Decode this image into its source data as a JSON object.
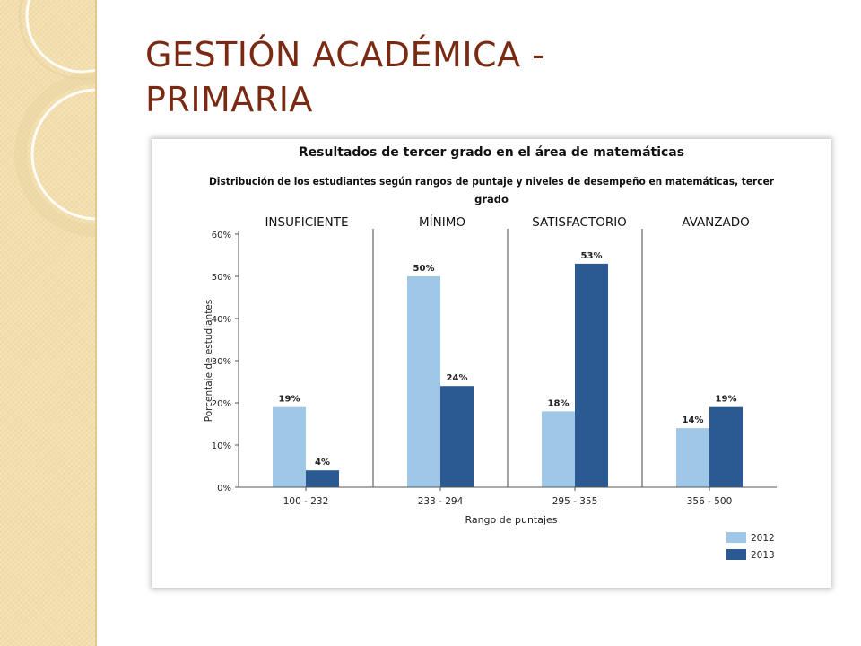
{
  "slide": {
    "title_line1": "GESTIÓN ACADÉMICA -",
    "title_line2": "PRIMARIA"
  },
  "chart_data": {
    "type": "bar",
    "title": "Resultados de tercer grado en el área de matemáticas",
    "subtitle_line1": "Distribución de los estudiantes según rangos de puntaje y niveles de desempeño en matemáticas, tercer",
    "subtitle_line2": "grado",
    "xlabel": "Rango de puntajes",
    "ylabel": "Porcentaje de estudiantes",
    "ylim": [
      0,
      60
    ],
    "yticks": [
      "0%",
      "10%",
      "20%",
      "30%",
      "40%",
      "50%",
      "60%"
    ],
    "levels": [
      "INSUFICIENTE",
      "MÍNIMO",
      "SATISFACTORIO",
      "AVANZADO"
    ],
    "categories": [
      "100 - 232",
      "233 - 294",
      "295 - 355",
      "356 - 500"
    ],
    "series": [
      {
        "name": "2012",
        "values": [
          19,
          50,
          18,
          14
        ],
        "labels": [
          "19%",
          "50%",
          "18%",
          "14%"
        ],
        "color": "#9fc7e8"
      },
      {
        "name": "2013",
        "values": [
          4,
          24,
          53,
          19
        ],
        "labels": [
          "4%",
          "24%",
          "53%",
          "19%"
        ],
        "color": "#2b5a93"
      }
    ],
    "grid": false,
    "legend": "bottom-right"
  }
}
